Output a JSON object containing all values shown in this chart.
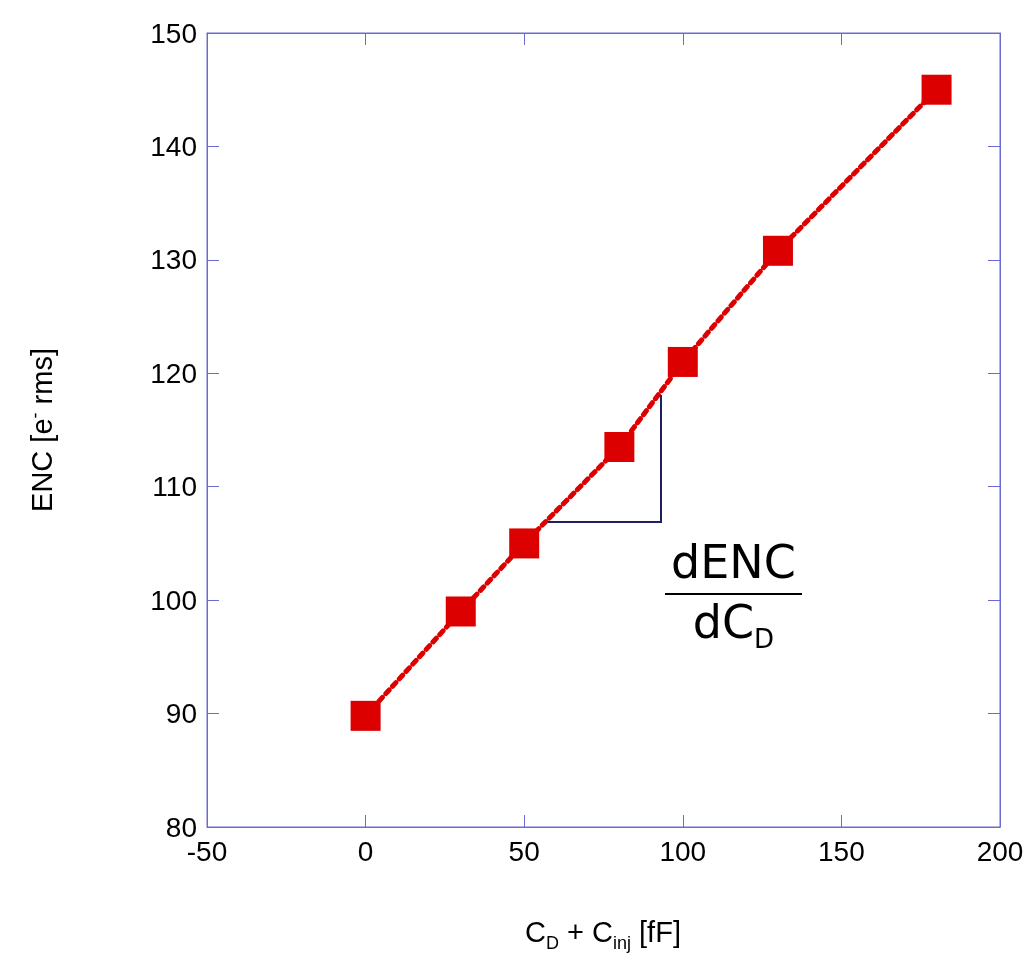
{
  "chart_data": {
    "type": "line",
    "xlabel": "C$_{D}$ + C$_{inj}$ [fF]",
    "ylabel": "ENC [e$^{-}$ rms]",
    "x": [
      0,
      30,
      50,
      80,
      100,
      130,
      180
    ],
    "series": [
      {
        "color": "#dd0000",
        "values": [
          89.8,
          99,
          105,
          113.5,
          121,
          130.8,
          145
        ]
      }
    ],
    "xlim": [
      -50,
      200
    ],
    "xticks": [
      -50,
      0,
      50,
      100,
      150,
      200
    ],
    "ylim": [
      80,
      150
    ],
    "yticks": [
      80,
      90,
      100,
      110,
      120,
      130,
      140,
      150
    ],
    "marker": "square",
    "line_style": "dotted",
    "annotations": [
      "dENC",
      "dC$_{D}$"
    ]
  }
}
